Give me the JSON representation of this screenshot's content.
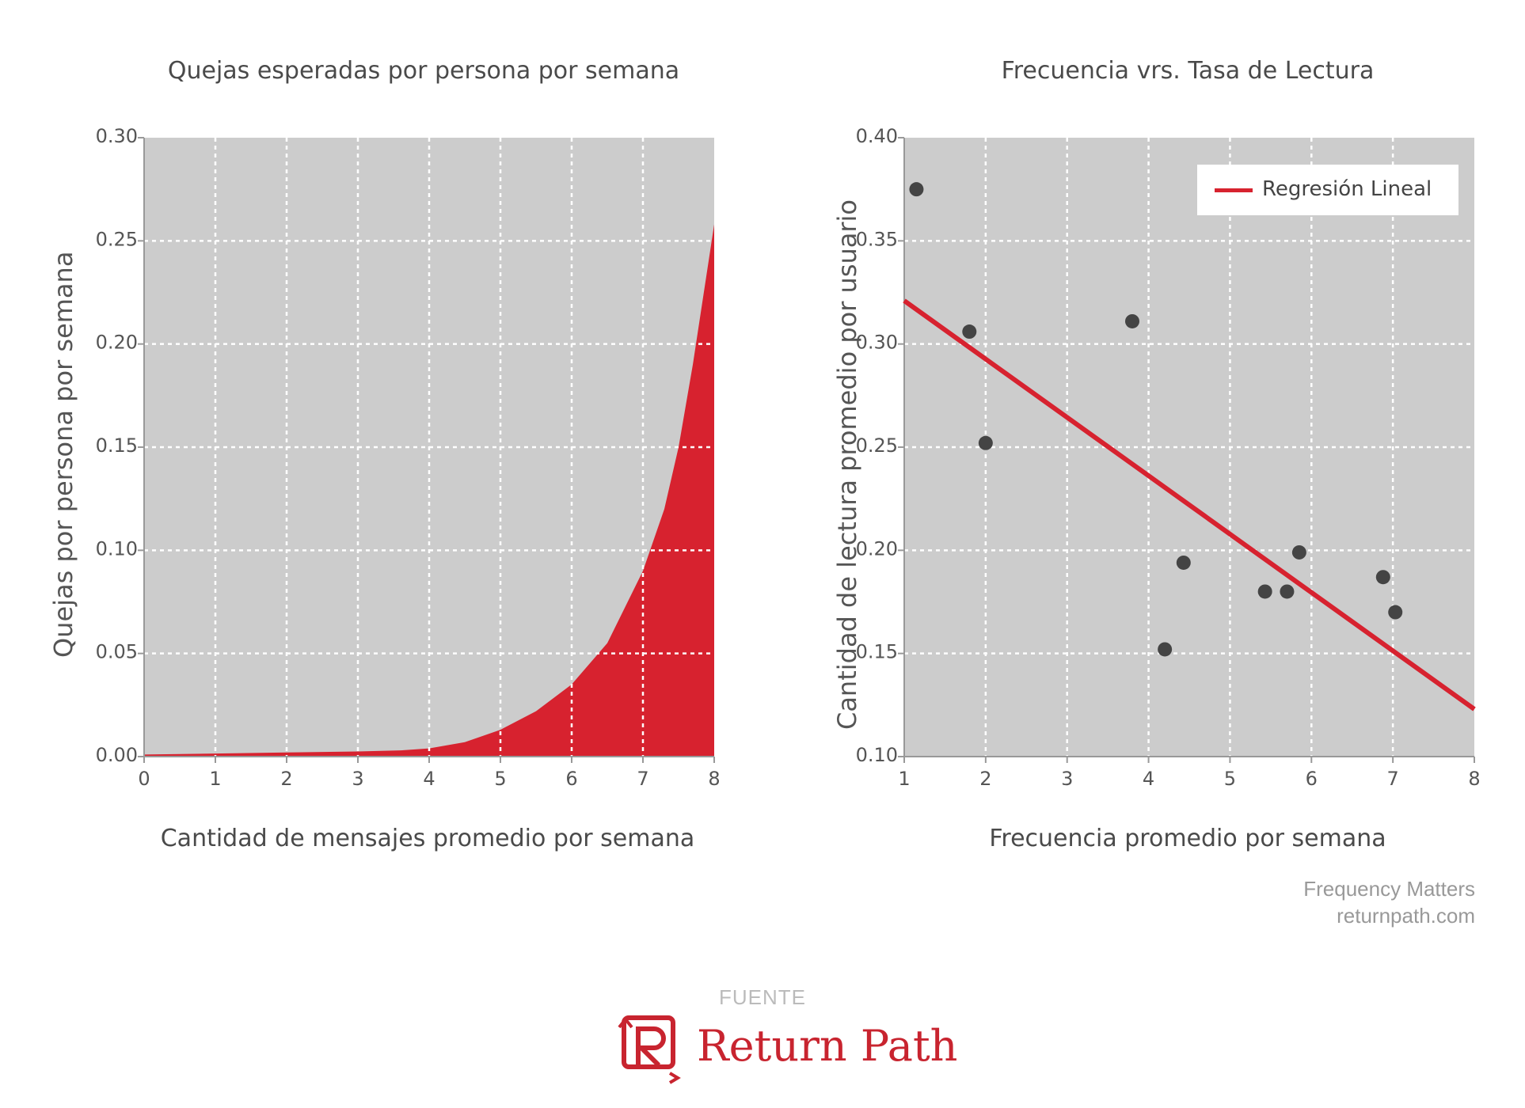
{
  "chart_data": [
    {
      "type": "area",
      "title": "Quejas esperadas por persona por semana",
      "xlabel": "Cantidad de mensajes promedio por semana",
      "ylabel": "Quejas por persona por semana",
      "xlim": [
        0,
        8
      ],
      "ylim": [
        0,
        0.3
      ],
      "xticks": [
        "0",
        "1",
        "2",
        "3",
        "4",
        "5",
        "6",
        "7",
        "8"
      ],
      "yticks": [
        "0.00",
        "0.05",
        "0.10",
        "0.15",
        "0.20",
        "0.25",
        "0.30"
      ],
      "grid": true,
      "fill_color": "#d7222f",
      "background": "#cccccc",
      "x": [
        0,
        1,
        2,
        3,
        3.6,
        4,
        4.5,
        5,
        5.5,
        6,
        6.5,
        7,
        7.3,
        7.5,
        7.7,
        8
      ],
      "y": [
        0.001,
        0.0015,
        0.002,
        0.0025,
        0.003,
        0.004,
        0.007,
        0.013,
        0.022,
        0.035,
        0.055,
        0.09,
        0.12,
        0.15,
        0.19,
        0.258
      ]
    },
    {
      "type": "scatter",
      "title": "Frecuencia vrs. Tasa de Lectura",
      "xlabel": "Frecuencia promedio por semana",
      "ylabel": "Cantidad de lectura promedio por usuario",
      "xlim": [
        1,
        8
      ],
      "ylim": [
        0.1,
        0.4
      ],
      "xticks": [
        "1",
        "2",
        "3",
        "4",
        "5",
        "6",
        "7",
        "8"
      ],
      "yticks": [
        "0.10",
        "0.15",
        "0.20",
        "0.25",
        "0.30",
        "0.35",
        "0.40"
      ],
      "grid": true,
      "legend": "top-right",
      "legend_label": "Regresión Lineal",
      "point_color": "#444444",
      "line_color": "#d7222f",
      "background": "#cccccc",
      "points": [
        {
          "x": 1.15,
          "y": 0.375
        },
        {
          "x": 1.8,
          "y": 0.306
        },
        {
          "x": 2.0,
          "y": 0.252
        },
        {
          "x": 3.8,
          "y": 0.311
        },
        {
          "x": 4.2,
          "y": 0.152
        },
        {
          "x": 4.43,
          "y": 0.194
        },
        {
          "x": 5.43,
          "y": 0.18
        },
        {
          "x": 5.7,
          "y": 0.18
        },
        {
          "x": 5.85,
          "y": 0.199
        },
        {
          "x": 6.88,
          "y": 0.187
        },
        {
          "x": 7.03,
          "y": 0.17
        }
      ],
      "regression": {
        "x": [
          1,
          8
        ],
        "y": [
          0.321,
          0.123
        ]
      }
    }
  ],
  "credit": {
    "line1": "Frequency Matters",
    "line2": "returnpath.com"
  },
  "source": {
    "label": "FUENTE",
    "brand": "Return Path",
    "brand_color": "#c8242f"
  }
}
